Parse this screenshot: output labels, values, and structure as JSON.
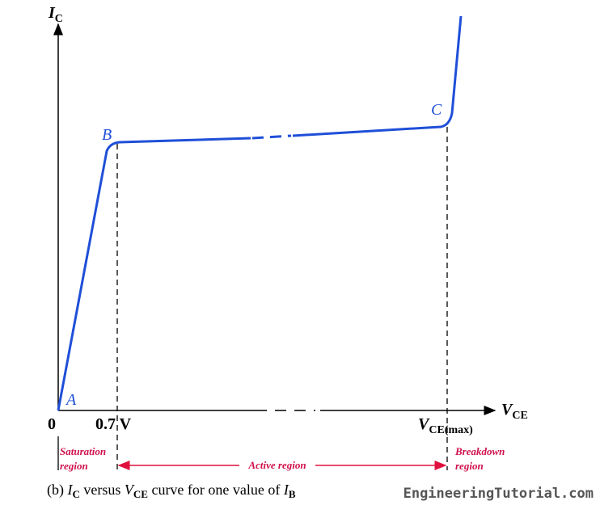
{
  "y_axis": {
    "main": "I",
    "sub": "C"
  },
  "x_axis": {
    "main": "V",
    "sub": "CE"
  },
  "points": {
    "a": "A",
    "b": "B",
    "c": "C"
  },
  "ticks": {
    "origin": "0",
    "knee": "0.7 V",
    "max": {
      "main": "V",
      "sub": "CE(max)"
    }
  },
  "regions": {
    "saturation": [
      "Saturation",
      "region"
    ],
    "active": "Active region",
    "breakdown": [
      "Breakdown",
      "region"
    ]
  },
  "caption": [
    "(b) ",
    "I",
    "C",
    " versus ",
    "V",
    "CE",
    " curve for one value of ",
    "I",
    "B"
  ],
  "watermark": "EngineeringTutorial.com"
}
